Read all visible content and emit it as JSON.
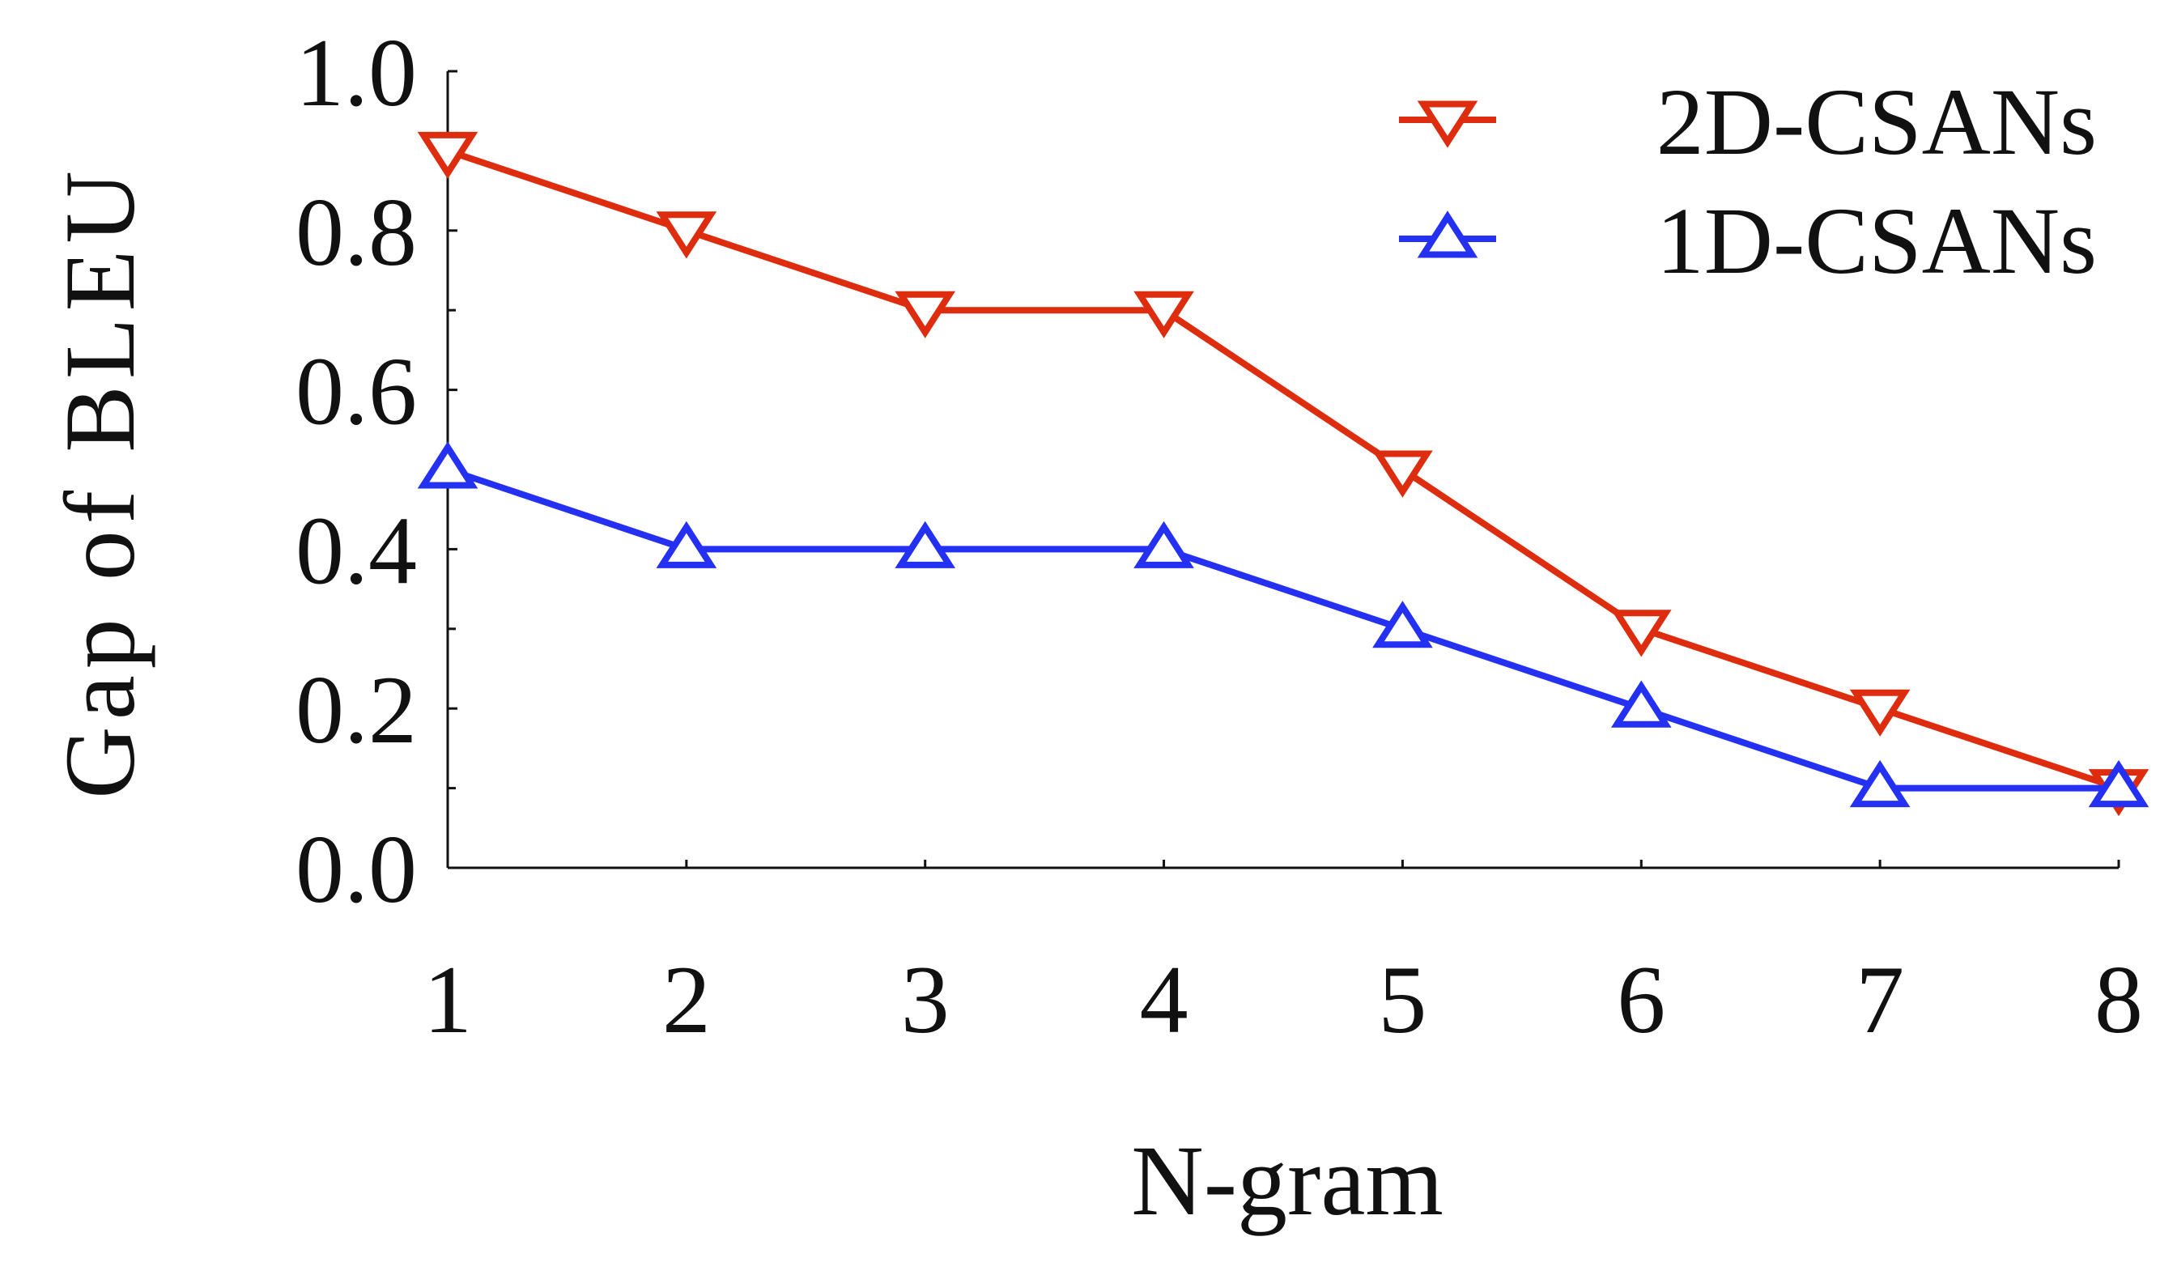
{
  "chart_data": {
    "type": "line",
    "title": "",
    "xlabel": "N-gram",
    "ylabel": "Gap of BLEU",
    "x": [
      1,
      2,
      3,
      4,
      5,
      6,
      7,
      8
    ],
    "x_tick_labels": [
      "1",
      "2",
      "3",
      "4",
      "5",
      "6",
      "7",
      "8"
    ],
    "y_tick_labels": [
      "0.0",
      "0.2",
      "0.4",
      "0.6",
      "0.8",
      "1.0"
    ],
    "ylim": [
      0.0,
      1.0
    ],
    "xlim": [
      1,
      8
    ],
    "grid": false,
    "legend_position": "top-right",
    "series": [
      {
        "name": "2D-CSANs",
        "color": "#dd2c0e",
        "marker": "triangle-down",
        "values": [
          0.9,
          0.8,
          0.7,
          0.7,
          0.5,
          0.3,
          0.2,
          0.1
        ]
      },
      {
        "name": "1D-CSANs",
        "color": "#2430f2",
        "marker": "triangle-up",
        "values": [
          0.5,
          0.4,
          0.4,
          0.4,
          0.3,
          0.2,
          0.1,
          0.1
        ]
      }
    ]
  }
}
